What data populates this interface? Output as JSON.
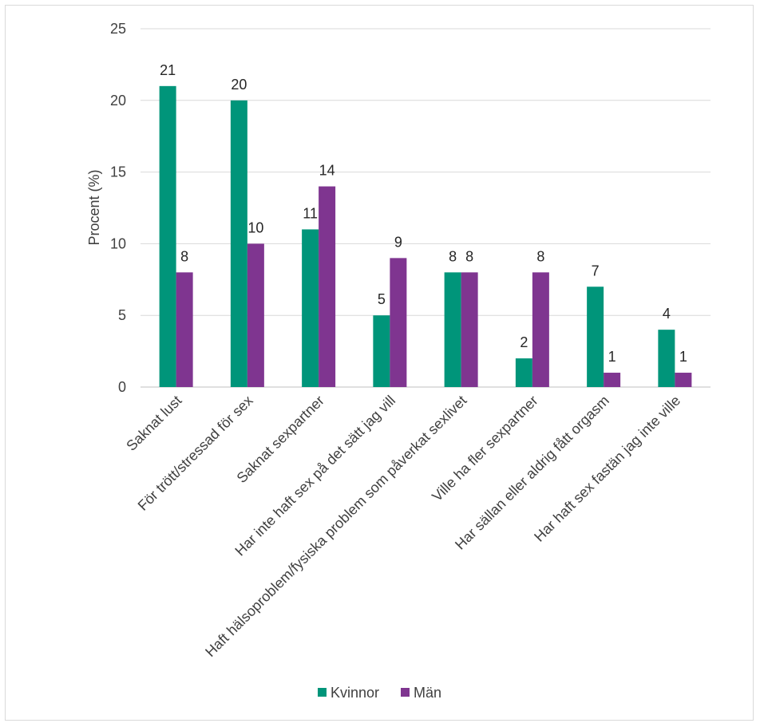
{
  "chart_data": {
    "type": "bar",
    "ylabel": "Procent (%)",
    "ylim": [
      0,
      25
    ],
    "yticks": [
      0,
      5,
      10,
      15,
      20,
      25
    ],
    "grid": true,
    "legend_position": "bottom",
    "categories": [
      "Saknat lust",
      "För trött/stressad för sex",
      "Saknat sexpartner",
      "Har inte haft sex på det sätt jag vill",
      "Haft hälsoproblem/fysiska problem som påverkat sexlivet",
      "Ville ha fler sexpartner",
      "Har sällan eller aldrig fått orgasm",
      "Har haft sex fastän jag inte ville"
    ],
    "series": [
      {
        "name": "Kvinnor",
        "color": "#00957a",
        "values": [
          21,
          20,
          11,
          5,
          8,
          2,
          7,
          4
        ]
      },
      {
        "name": "Män",
        "color": "#7f3590",
        "values": [
          8,
          10,
          14,
          9,
          8,
          8,
          1,
          1
        ]
      }
    ]
  }
}
